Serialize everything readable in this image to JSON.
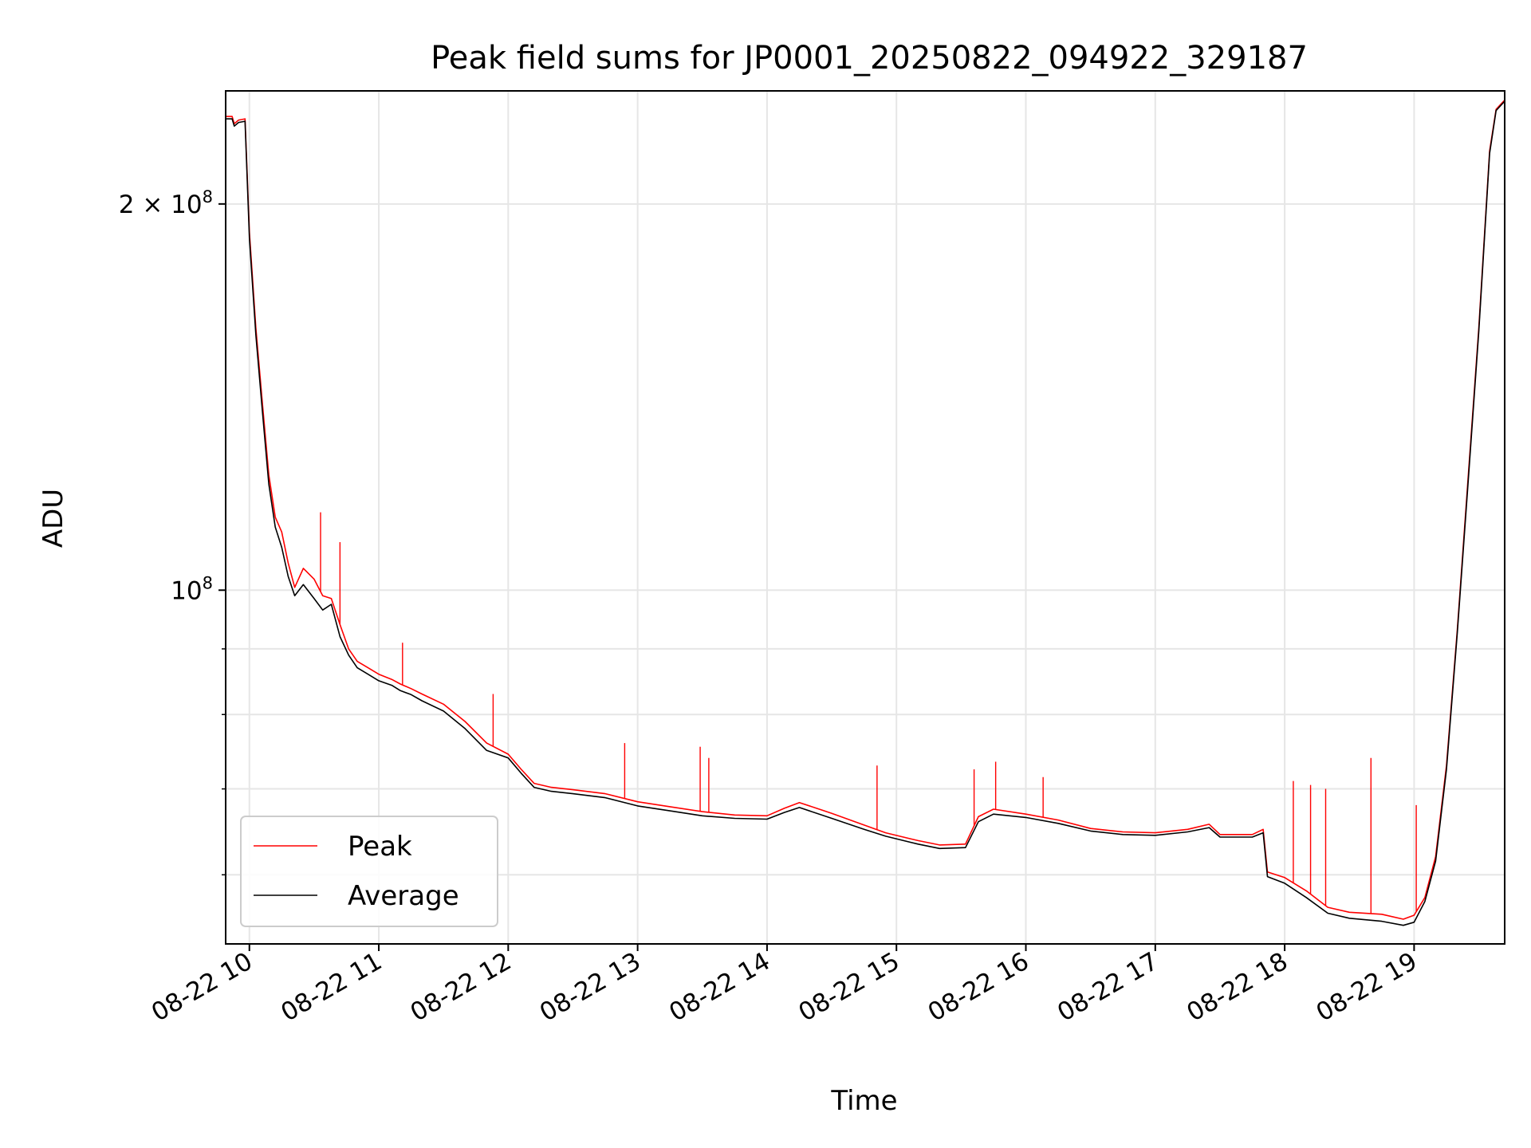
{
  "chart_data": {
    "type": "line",
    "title": "Peak field sums for JP0001_20250822_094922_329187",
    "xlabel": "Time",
    "ylabel": "ADU",
    "y_scale": "log",
    "ylim": [
      53000000,
      245000000
    ],
    "xlim": [
      "2025-08-22 09:49",
      "2025-08-22 19:42"
    ],
    "grid": true,
    "legend_position": "lower-left",
    "x_tick_labels": [
      "08-22 10",
      "08-22 11",
      "08-22 12",
      "08-22 13",
      "08-22 14",
      "08-22 15",
      "08-22 16",
      "08-22 17",
      "08-22 18",
      "08-22 19"
    ],
    "x_ticks": [
      "2025-08-22 10:00",
      "2025-08-22 11:00",
      "2025-08-22 12:00",
      "2025-08-22 13:00",
      "2025-08-22 14:00",
      "2025-08-22 15:00",
      "2025-08-22 16:00",
      "2025-08-22 17:00",
      "2025-08-22 18:00",
      "2025-08-22 19:00"
    ],
    "y_tick_labels": [
      {
        "value": 200000000,
        "mantissa": "2",
        "times": "×",
        "base": "10",
        "exp": "8"
      },
      {
        "value": 100000000,
        "mantissa": "",
        "times": "",
        "base": "10",
        "exp": "8"
      }
    ],
    "y_minor_ticks": [
      60000000,
      70000000,
      80000000,
      90000000
    ],
    "series": [
      {
        "name": "Peak",
        "color": "#ff0000",
        "x": [
          "2025-08-22 09:49",
          "2025-08-22 09:52",
          "2025-08-22 09:53",
          "2025-08-22 09:55",
          "2025-08-22 09:58",
          "2025-08-22 10:00",
          "2025-08-22 10:03",
          "2025-08-22 10:06",
          "2025-08-22 10:09",
          "2025-08-22 10:12",
          "2025-08-22 10:15",
          "2025-08-22 10:18",
          "2025-08-22 10:21",
          "2025-08-22 10:25",
          "2025-08-22 10:30",
          "2025-08-22 10:34",
          "2025-08-22 10:38",
          "2025-08-22 10:42",
          "2025-08-22 10:46",
          "2025-08-22 10:50",
          "2025-08-22 10:55",
          "2025-08-22 11:00",
          "2025-08-22 11:06",
          "2025-08-22 11:10",
          "2025-08-22 11:15",
          "2025-08-22 11:20",
          "2025-08-22 11:30",
          "2025-08-22 11:40",
          "2025-08-22 11:50",
          "2025-08-22 12:00",
          "2025-08-22 12:06",
          "2025-08-22 12:12",
          "2025-08-22 12:20",
          "2025-08-22 12:30",
          "2025-08-22 12:45",
          "2025-08-22 13:00",
          "2025-08-22 13:15",
          "2025-08-22 13:30",
          "2025-08-22 13:45",
          "2025-08-22 14:00",
          "2025-08-22 14:08",
          "2025-08-22 14:15",
          "2025-08-22 14:30",
          "2025-08-22 14:45",
          "2025-08-22 14:55",
          "2025-08-22 15:10",
          "2025-08-22 15:20",
          "2025-08-22 15:32",
          "2025-08-22 15:38",
          "2025-08-22 15:45",
          "2025-08-22 16:00",
          "2025-08-22 16:15",
          "2025-08-22 16:30",
          "2025-08-22 16:45",
          "2025-08-22 17:00",
          "2025-08-22 17:15",
          "2025-08-22 17:25",
          "2025-08-22 17:30",
          "2025-08-22 17:45",
          "2025-08-22 17:50",
          "2025-08-22 17:52",
          "2025-08-22 18:00",
          "2025-08-22 18:10",
          "2025-08-22 18:20",
          "2025-08-22 18:30",
          "2025-08-22 18:45",
          "2025-08-22 18:55",
          "2025-08-22 19:00",
          "2025-08-22 19:05",
          "2025-08-22 19:10",
          "2025-08-22 19:15",
          "2025-08-22 19:20",
          "2025-08-22 19:25",
          "2025-08-22 19:30",
          "2025-08-22 19:35",
          "2025-08-22 19:38",
          "2025-08-22 19:42"
        ],
        "y": [
          234000000,
          234000000,
          231000000,
          232500000,
          233000000,
          190000000,
          160000000,
          140000000,
          123000000,
          114000000,
          111000000,
          105000000,
          100500000,
          104000000,
          102000000,
          99000000,
          98500000,
          94000000,
          90000000,
          88000000,
          87000000,
          86000000,
          85200000,
          84500000,
          83800000,
          83000000,
          81500000,
          79000000,
          76000000,
          74500000,
          72500000,
          70700000,
          70200000,
          69900000,
          69400000,
          68400000,
          67800000,
          67200000,
          66800000,
          66700000,
          67600000,
          68300000,
          67000000,
          65600000,
          64700000,
          63800000,
          63300000,
          63400000,
          66600000,
          67500000,
          66900000,
          66200000,
          65200000,
          64800000,
          64700000,
          65100000,
          65700000,
          64500000,
          64500000,
          65100000,
          60300000,
          59700000,
          58300000,
          56600000,
          56100000,
          55900000,
          55400000,
          55800000,
          57600000,
          62000000,
          73000000,
          93000000,
          122000000,
          160000000,
          220000000,
          237000000,
          241000000
        ],
        "spikes": [
          {
            "x": "2025-08-22 10:33",
            "y": 115000000
          },
          {
            "x": "2025-08-22 10:42",
            "y": 109000000
          },
          {
            "x": "2025-08-22 11:11",
            "y": 91000000
          },
          {
            "x": "2025-08-22 11:53",
            "y": 83000000
          },
          {
            "x": "2025-08-22 12:54",
            "y": 76000000
          },
          {
            "x": "2025-08-22 13:29",
            "y": 75500000
          },
          {
            "x": "2025-08-22 13:33",
            "y": 74000000
          },
          {
            "x": "2025-08-22 14:51",
            "y": 73000000
          },
          {
            "x": "2025-08-22 15:36",
            "y": 72500000
          },
          {
            "x": "2025-08-22 15:46",
            "y": 73500000
          },
          {
            "x": "2025-08-22 16:08",
            "y": 71500000
          },
          {
            "x": "2025-08-22 18:04",
            "y": 71000000
          },
          {
            "x": "2025-08-22 18:12",
            "y": 70500000
          },
          {
            "x": "2025-08-22 18:19",
            "y": 70000000
          },
          {
            "x": "2025-08-22 18:40",
            "y": 74000000
          },
          {
            "x": "2025-08-22 19:01",
            "y": 68000000
          }
        ]
      },
      {
        "name": "Average",
        "color": "#000000",
        "x": [
          "2025-08-22 09:49",
          "2025-08-22 09:52",
          "2025-08-22 09:53",
          "2025-08-22 09:55",
          "2025-08-22 09:58",
          "2025-08-22 10:00",
          "2025-08-22 10:03",
          "2025-08-22 10:06",
          "2025-08-22 10:09",
          "2025-08-22 10:12",
          "2025-08-22 10:15",
          "2025-08-22 10:18",
          "2025-08-22 10:21",
          "2025-08-22 10:25",
          "2025-08-22 10:30",
          "2025-08-22 10:34",
          "2025-08-22 10:38",
          "2025-08-22 10:42",
          "2025-08-22 10:46",
          "2025-08-22 10:50",
          "2025-08-22 10:55",
          "2025-08-22 11:00",
          "2025-08-22 11:06",
          "2025-08-22 11:10",
          "2025-08-22 11:15",
          "2025-08-22 11:20",
          "2025-08-22 11:30",
          "2025-08-22 11:40",
          "2025-08-22 11:50",
          "2025-08-22 12:00",
          "2025-08-22 12:06",
          "2025-08-22 12:12",
          "2025-08-22 12:20",
          "2025-08-22 12:30",
          "2025-08-22 12:45",
          "2025-08-22 13:00",
          "2025-08-22 13:15",
          "2025-08-22 13:30",
          "2025-08-22 13:45",
          "2025-08-22 14:00",
          "2025-08-22 14:08",
          "2025-08-22 14:15",
          "2025-08-22 14:30",
          "2025-08-22 14:45",
          "2025-08-22 14:55",
          "2025-08-22 15:10",
          "2025-08-22 15:20",
          "2025-08-22 15:32",
          "2025-08-22 15:38",
          "2025-08-22 15:45",
          "2025-08-22 16:00",
          "2025-08-22 16:15",
          "2025-08-22 16:30",
          "2025-08-22 16:45",
          "2025-08-22 17:00",
          "2025-08-22 17:15",
          "2025-08-22 17:25",
          "2025-08-22 17:30",
          "2025-08-22 17:45",
          "2025-08-22 17:50",
          "2025-08-22 17:52",
          "2025-08-22 18:00",
          "2025-08-22 18:10",
          "2025-08-22 18:20",
          "2025-08-22 18:30",
          "2025-08-22 18:45",
          "2025-08-22 18:55",
          "2025-08-22 19:00",
          "2025-08-22 19:05",
          "2025-08-22 19:10",
          "2025-08-22 19:15",
          "2025-08-22 19:20",
          "2025-08-22 19:25",
          "2025-08-22 19:30",
          "2025-08-22 19:35",
          "2025-08-22 19:38",
          "2025-08-22 19:42"
        ],
        "y": [
          233000000,
          233000000,
          230000000,
          231500000,
          232000000,
          188000000,
          158000000,
          138000000,
          121000000,
          112000000,
          108000000,
          102500000,
          99000000,
          101000000,
          98500000,
          96500000,
          97500000,
          92000000,
          89000000,
          87000000,
          86000000,
          85000000,
          84300000,
          83500000,
          82900000,
          82000000,
          80500000,
          78000000,
          75000000,
          74000000,
          72000000,
          70200000,
          69700000,
          69400000,
          68900000,
          67900000,
          67300000,
          66700000,
          66400000,
          66300000,
          67100000,
          67700000,
          66400000,
          65100000,
          64300000,
          63400000,
          62900000,
          63000000,
          66000000,
          66900000,
          66500000,
          65800000,
          64900000,
          64500000,
          64400000,
          64800000,
          65300000,
          64200000,
          64200000,
          64700000,
          59800000,
          59100000,
          57600000,
          56000000,
          55500000,
          55200000,
          54800000,
          55100000,
          57200000,
          61500000,
          72500000,
          92500000,
          121000000,
          159000000,
          219000000,
          236500000,
          240500000
        ]
      }
    ]
  }
}
